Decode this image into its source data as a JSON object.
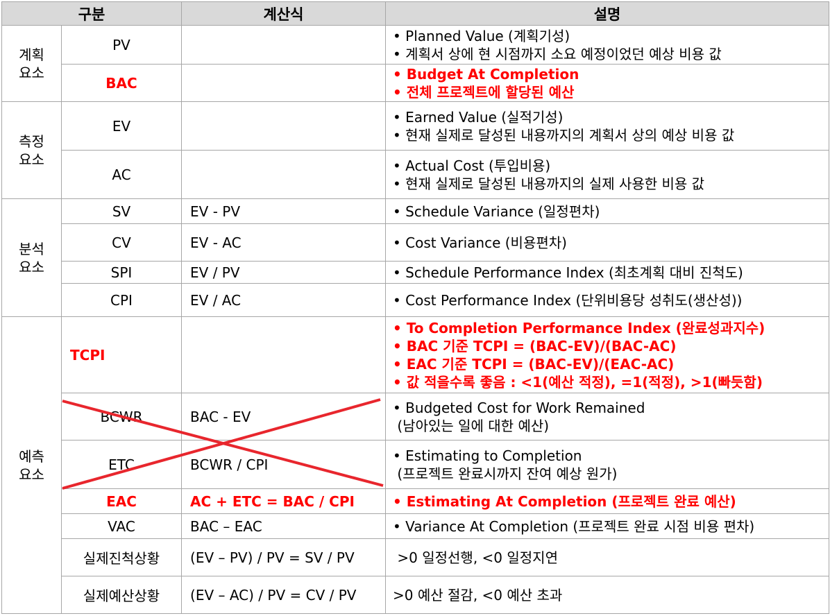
{
  "header": {
    "category": "구분",
    "formula": "계산식",
    "description": "설명"
  },
  "groups": {
    "plan": [
      "계획",
      "요소"
    ],
    "measure": [
      "측정",
      "요소"
    ],
    "analysis": [
      "분석",
      "요소"
    ],
    "forecast": [
      "예측",
      "요소"
    ]
  },
  "rows": [
    {
      "name": "PV",
      "formula": "",
      "desc": [
        "• Planned Value (계획기성)",
        "• 계획서 상에 현 시점까지 소요 예정이었던 예상 비용 값"
      ]
    },
    {
      "name": "BAC",
      "formula": "",
      "desc": [
        "• Budget At Completion",
        "• 전체 프로젝트에 할당된 예산"
      ]
    },
    {
      "name": "EV",
      "formula": "",
      "desc": [
        "• Earned Value (실적기성)",
        "• 현재 실제로 달성된 내용까지의 계획서 상의 예상 비용 값"
      ]
    },
    {
      "name": "AC",
      "formula": "",
      "desc": [
        "• Actual Cost (투입비용)",
        "• 현재 실제로 달성된 내용까지의 실제 사용한 비용 값"
      ]
    },
    {
      "name": "SV",
      "formula": "EV - PV",
      "desc": [
        "• Schedule Variance (일정편차)"
      ]
    },
    {
      "name": "CV",
      "formula": "EV - AC",
      "desc": [
        "• Cost Variance (비용편차)"
      ]
    },
    {
      "name": "SPI",
      "formula": "EV / PV",
      "desc": [
        "• Schedule Performance Index (최초계획 대비 진척도)"
      ]
    },
    {
      "name": "CPI",
      "formula": "EV / AC",
      "desc": [
        "• Cost Performance Index (단위비용당 성취도(생산성))"
      ]
    },
    {
      "name": "TCPI",
      "formula": "",
      "desc": [
        "• To Completion Performance Index (완료성과지수)",
        "• BAC 기준 TCPI = (BAC-EV)/(BAC-AC)",
        "• EAC 기준 TCPI = (BAC-EV)/(EAC-AC)",
        "• 값 적을수록 좋음  : <1(예산 적정), =1(적정), >1(빠듯함)"
      ]
    },
    {
      "name": "BCWR",
      "formula": "BAC - EV",
      "desc": [
        "• Budgeted Cost for Work Remained",
        " (남아있는 일에 대한 예산)"
      ]
    },
    {
      "name": "ETC",
      "formula": "BCWR / CPI",
      "desc": [
        "• Estimating to Completion",
        " (프로젝트 완료시까지 잔여 예상 원가)"
      ]
    },
    {
      "name": "EAC",
      "formula": "AC + ETC = BAC / CPI",
      "desc": [
        "• Estimating At Completion (프로젝트 완료 예산)"
      ]
    },
    {
      "name": "VAC",
      "formula": "BAC – EAC",
      "desc": [
        "• Variance At Completion (프로젝트 완료 시점 비용 편차)"
      ]
    },
    {
      "name": "실제진척상황",
      "formula": "(EV – PV) / PV = SV / PV",
      "desc": [
        " >0 일정선행, <0 일정지연"
      ]
    },
    {
      "name": "실제예산상황",
      "formula": "(EV – AC) / PV = CV / PV",
      "desc": [
        ">0 예산 절감, <0 예산 초과"
      ]
    }
  ],
  "colors": {
    "header_bg": "#d9d9d9",
    "highlight": "#ff0000",
    "border": "#a6a6a6"
  }
}
